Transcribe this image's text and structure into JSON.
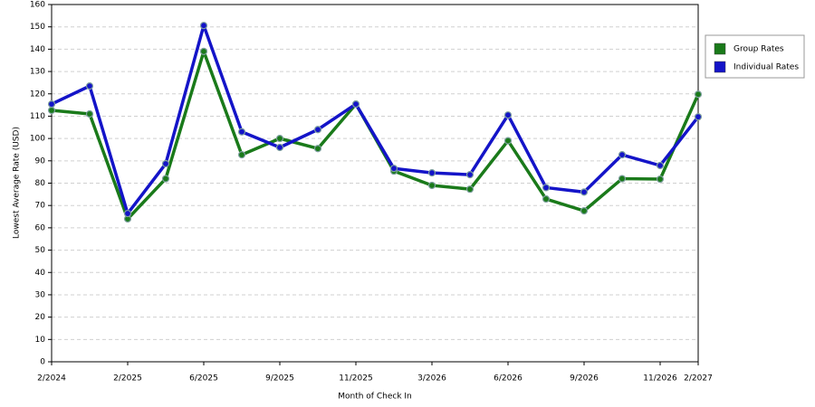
{
  "chart_data": {
    "type": "line",
    "x_label": "Month of Check In",
    "y_label": "Lowest Average Rate (USD)",
    "categories": [
      "2/2024",
      null,
      "2/2025",
      null,
      "6/2025",
      null,
      "9/2025",
      null,
      "11/2025",
      null,
      "3/2026",
      null,
      "6/2026",
      null,
      "9/2026",
      null,
      "11/2026",
      "2/2027"
    ],
    "series": [
      {
        "name": "Group Rates",
        "color": "#1a7a1a",
        "values": [
          112.6,
          111,
          64,
          82,
          139,
          92.7,
          100,
          95.5,
          115.4,
          85.4,
          79,
          77.3,
          99,
          72.9,
          67.6,
          82,
          81.8,
          119.8
        ]
      },
      {
        "name": "Individual Rates",
        "color": "#1414c8",
        "values": [
          115.4,
          123.5,
          66.4,
          88.7,
          150.6,
          103,
          96,
          104,
          115.4,
          86.6,
          84.6,
          83.8,
          110.5,
          78,
          76,
          92.7,
          87.9,
          109.7
        ]
      }
    ],
    "ylim": [
      0,
      160
    ],
    "yticks": [
      0,
      10,
      20,
      30,
      40,
      50,
      60,
      70,
      80,
      90,
      100,
      110,
      120,
      130,
      140,
      150,
      160
    ],
    "grid": true,
    "legend": "right"
  }
}
